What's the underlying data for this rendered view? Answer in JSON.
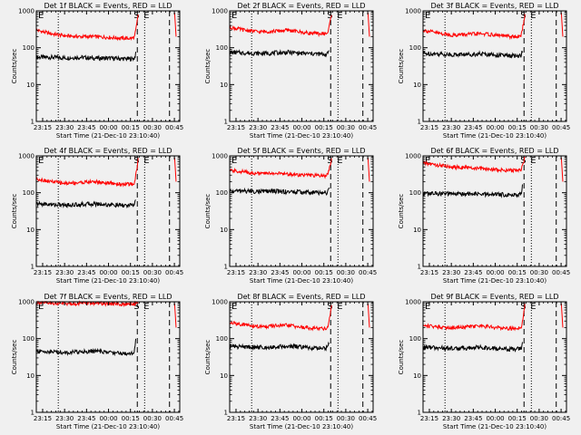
{
  "colors": {
    "events": "#000000",
    "lld": "#ff0000",
    "background": "#f0f0f0"
  },
  "shared": {
    "xlabel": "Start Time (21-Dec-10 23:10:40)",
    "ylabel": "Counts/sec",
    "x_ticks": [
      "23:15",
      "23:30",
      "23:45",
      "00:00",
      "00:15",
      "00:30",
      "00:45"
    ],
    "y_ticks": [
      "1",
      "10",
      "100",
      "1000"
    ],
    "marker_E": "E",
    "marker_S": "S"
  },
  "chart_data": [
    {
      "type": "line",
      "title": "Det 1f BLACK = Events, RED = LLD",
      "xlabel": "Start Time (21-Dec-10 23:10:40)",
      "ylabel": "Counts/sec",
      "x_unit": "minutes after 23:10:40",
      "xlim": [
        0,
        98
      ],
      "ylim": [
        1,
        1000
      ],
      "yscale": "log",
      "dotted_lines_x": [
        15,
        74
      ],
      "dashed_lines_x": [
        69,
        91
      ],
      "series": [
        {
          "name": "Events",
          "color": "#000000",
          "x": [
            0,
            10,
            20,
            30,
            40,
            50,
            60,
            65,
            67,
            68
          ],
          "y": [
            55,
            55,
            53,
            55,
            52,
            52,
            50,
            50,
            52,
            70
          ]
        },
        {
          "name": "LLD",
          "color": "#ff0000",
          "x": [
            0,
            10,
            20,
            30,
            40,
            50,
            60,
            65,
            67,
            68,
            70
          ],
          "y": [
            300,
            240,
            210,
            200,
            200,
            190,
            180,
            180,
            190,
            300,
            1000
          ]
        }
      ]
    },
    {
      "type": "line",
      "title": "Det 2f BLACK = Events, RED = LLD",
      "xlabel": "Start Time (21-Dec-10 23:10:40)",
      "ylabel": "Counts/sec",
      "x_unit": "minutes after 23:10:40",
      "xlim": [
        0,
        98
      ],
      "ylim": [
        1,
        1000
      ],
      "yscale": "log",
      "dotted_lines_x": [
        15,
        74
      ],
      "dashed_lines_x": [
        69,
        91
      ],
      "series": [
        {
          "name": "Events",
          "color": "#000000",
          "x": [
            0,
            10,
            20,
            30,
            40,
            50,
            60,
            65,
            67,
            68
          ],
          "y": [
            75,
            72,
            70,
            72,
            75,
            70,
            68,
            66,
            68,
            90
          ]
        },
        {
          "name": "LLD",
          "color": "#ff0000",
          "x": [
            0,
            10,
            20,
            30,
            40,
            50,
            60,
            65,
            67,
            68,
            70
          ],
          "y": [
            360,
            300,
            270,
            280,
            300,
            260,
            240,
            240,
            250,
            380,
            1000
          ]
        }
      ]
    },
    {
      "type": "line",
      "title": "Det 3f BLACK = Events, RED = LLD",
      "xlabel": "Start Time (21-Dec-10 23:10:40)",
      "ylabel": "Counts/sec",
      "x_unit": "minutes after 23:10:40",
      "xlim": [
        0,
        98
      ],
      "ylim": [
        1,
        1000
      ],
      "yscale": "log",
      "dotted_lines_x": [
        15,
        74
      ],
      "dashed_lines_x": [
        69,
        91
      ],
      "series": [
        {
          "name": "Events",
          "color": "#000000",
          "x": [
            0,
            10,
            20,
            30,
            40,
            50,
            60,
            65,
            67,
            68
          ],
          "y": [
            70,
            68,
            65,
            66,
            68,
            64,
            60,
            60,
            62,
            85
          ]
        },
        {
          "name": "LLD",
          "color": "#ff0000",
          "x": [
            0,
            10,
            20,
            30,
            40,
            50,
            60,
            65,
            67,
            68,
            70
          ],
          "y": [
            300,
            250,
            220,
            230,
            240,
            220,
            200,
            200,
            210,
            330,
            1000
          ]
        }
      ]
    },
    {
      "type": "line",
      "title": "Det 4f BLACK = Events, RED = LLD",
      "xlabel": "Start Time (21-Dec-10 23:10:40)",
      "ylabel": "Counts/sec",
      "x_unit": "minutes after 23:10:40",
      "xlim": [
        0,
        98
      ],
      "ylim": [
        1,
        1000
      ],
      "yscale": "log",
      "dotted_lines_x": [
        15,
        74
      ],
      "dashed_lines_x": [
        69,
        91
      ],
      "series": [
        {
          "name": "Events",
          "color": "#000000",
          "x": [
            0,
            10,
            20,
            30,
            40,
            50,
            60,
            65,
            67,
            68
          ],
          "y": [
            50,
            48,
            46,
            48,
            50,
            47,
            45,
            45,
            48,
            75
          ]
        },
        {
          "name": "LLD",
          "color": "#ff0000",
          "x": [
            0,
            10,
            20,
            30,
            40,
            50,
            60,
            65,
            67,
            68,
            70
          ],
          "y": [
            240,
            200,
            180,
            190,
            200,
            180,
            170,
            170,
            180,
            300,
            1000
          ]
        }
      ]
    },
    {
      "type": "line",
      "title": "Det 5f BLACK = Events, RED = LLD",
      "xlabel": "Start Time (21-Dec-10 23:10:40)",
      "ylabel": "Counts/sec",
      "x_unit": "minutes after 23:10:40",
      "xlim": [
        0,
        98
      ],
      "ylim": [
        1,
        1000
      ],
      "yscale": "log",
      "dotted_lines_x": [
        15,
        74
      ],
      "dashed_lines_x": [
        69,
        91
      ],
      "series": [
        {
          "name": "Events",
          "color": "#000000",
          "x": [
            0,
            10,
            20,
            30,
            40,
            50,
            60,
            65,
            67,
            68
          ],
          "y": [
            110,
            112,
            108,
            110,
            106,
            104,
            100,
            100,
            102,
            130
          ]
        },
        {
          "name": "LLD",
          "color": "#ff0000",
          "x": [
            0,
            10,
            20,
            30,
            40,
            50,
            60,
            65,
            67,
            68,
            70
          ],
          "y": [
            400,
            370,
            330,
            340,
            320,
            300,
            290,
            290,
            300,
            450,
            1000
          ]
        }
      ]
    },
    {
      "type": "line",
      "title": "Det 6f BLACK = Events, RED = LLD",
      "xlabel": "Start Time (21-Dec-10 23:10:40)",
      "ylabel": "Counts/sec",
      "x_unit": "minutes after 23:10:40",
      "xlim": [
        0,
        98
      ],
      "ylim": [
        1,
        1000
      ],
      "yscale": "log",
      "dotted_lines_x": [
        15,
        74
      ],
      "dashed_lines_x": [
        69,
        91
      ],
      "series": [
        {
          "name": "Events",
          "color": "#000000",
          "x": [
            0,
            10,
            20,
            30,
            40,
            50,
            60,
            65,
            67,
            68
          ],
          "y": [
            95,
            95,
            92,
            94,
            90,
            90,
            88,
            88,
            90,
            160
          ]
        },
        {
          "name": "LLD",
          "color": "#ff0000",
          "x": [
            0,
            10,
            20,
            30,
            40,
            50,
            60,
            65,
            67,
            68,
            70
          ],
          "y": [
            640,
            560,
            500,
            480,
            450,
            420,
            400,
            400,
            420,
            600,
            1000
          ]
        }
      ]
    },
    {
      "type": "line",
      "title": "Det 7f BLACK = Events, RED = LLD",
      "xlabel": "Start Time (21-Dec-10 23:10:40)",
      "ylabel": "Counts/sec",
      "x_unit": "minutes after 23:10:40",
      "xlim": [
        0,
        98
      ],
      "ylim": [
        1,
        1000
      ],
      "yscale": "log",
      "dotted_lines_x": [
        15,
        74
      ],
      "dashed_lines_x": [
        69,
        91
      ],
      "series": [
        {
          "name": "Events",
          "color": "#000000",
          "x": [
            0,
            10,
            20,
            30,
            40,
            50,
            60,
            65,
            67,
            68
          ],
          "y": [
            45,
            44,
            42,
            44,
            46,
            42,
            40,
            40,
            45,
            110
          ]
        },
        {
          "name": "LLD",
          "color": "#ff0000",
          "x": [
            0,
            10,
            20,
            30,
            40,
            50,
            60,
            65,
            67,
            68,
            70
          ],
          "y": [
            950,
            900,
            880,
            900,
            920,
            880,
            860,
            860,
            880,
            950,
            1000
          ]
        }
      ]
    },
    {
      "type": "line",
      "title": "Det 8f BLACK = Events, RED = LLD",
      "xlabel": "Start Time (21-Dec-10 23:10:40)",
      "ylabel": "Counts/sec",
      "x_unit": "minutes after 23:10:40",
      "xlim": [
        0,
        98
      ],
      "ylim": [
        1,
        1000
      ],
      "yscale": "log",
      "dotted_lines_x": [
        15,
        74
      ],
      "dashed_lines_x": [
        69,
        91
      ],
      "series": [
        {
          "name": "Events",
          "color": "#000000",
          "x": [
            0,
            10,
            20,
            30,
            40,
            50,
            60,
            65,
            67,
            68
          ],
          "y": [
            62,
            60,
            58,
            60,
            62,
            58,
            55,
            55,
            58,
            80
          ]
        },
        {
          "name": "LLD",
          "color": "#ff0000",
          "x": [
            0,
            10,
            20,
            30,
            40,
            50,
            60,
            65,
            67,
            68,
            70
          ],
          "y": [
            270,
            240,
            210,
            220,
            230,
            200,
            190,
            190,
            200,
            320,
            1000
          ]
        }
      ]
    },
    {
      "type": "line",
      "title": "Det 9f BLACK = Events, RED = LLD",
      "xlabel": "Start Time (21-Dec-10 23:10:40)",
      "ylabel": "Counts/sec",
      "x_unit": "minutes after 23:10:40",
      "xlim": [
        0,
        98
      ],
      "ylim": [
        1,
        1000
      ],
      "yscale": "log",
      "dotted_lines_x": [
        15,
        74
      ],
      "dashed_lines_x": [
        69,
        91
      ],
      "series": [
        {
          "name": "Events",
          "color": "#000000",
          "x": [
            0,
            10,
            20,
            30,
            40,
            50,
            60,
            65,
            67,
            68
          ],
          "y": [
            58,
            56,
            54,
            56,
            58,
            54,
            52,
            52,
            55,
            75
          ]
        },
        {
          "name": "LLD",
          "color": "#ff0000",
          "x": [
            0,
            10,
            20,
            30,
            40,
            50,
            60,
            65,
            67,
            68,
            70
          ],
          "y": [
            230,
            210,
            200,
            210,
            220,
            200,
            190,
            190,
            200,
            300,
            1000
          ]
        }
      ]
    }
  ]
}
